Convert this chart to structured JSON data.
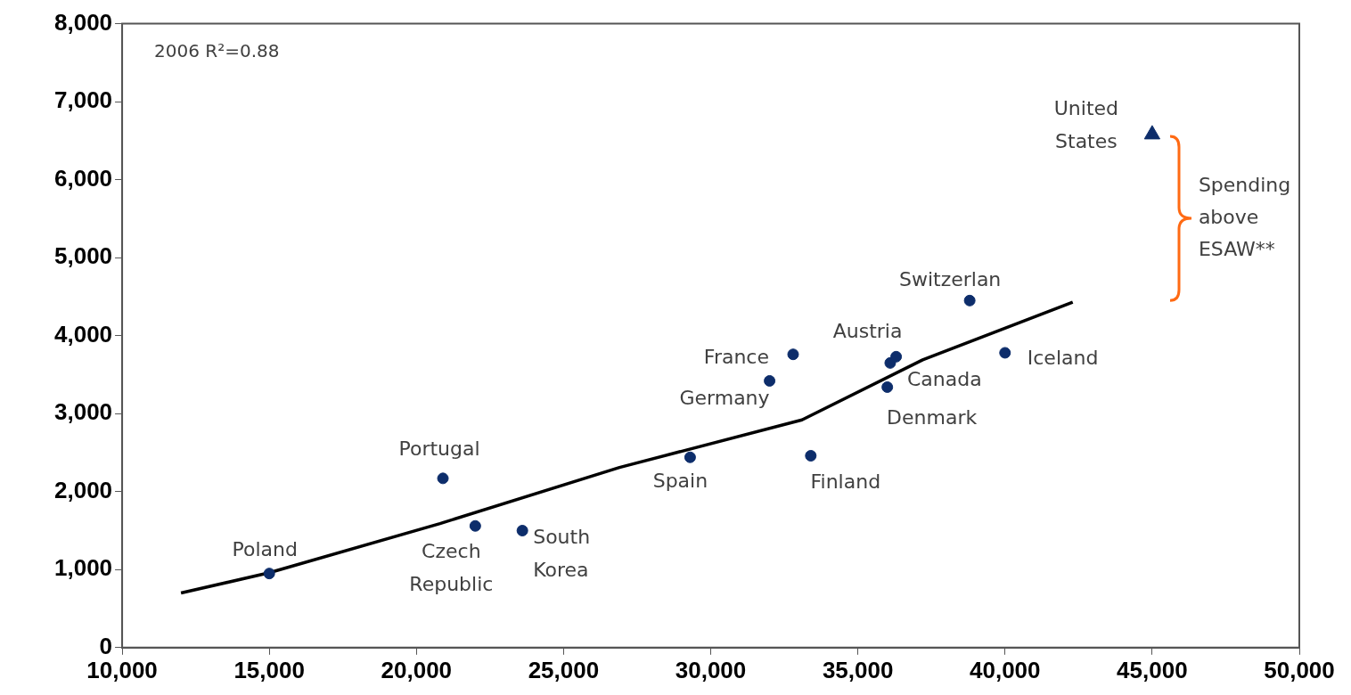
{
  "chart_data": {
    "type": "scatter",
    "xlim": [
      10000,
      50000
    ],
    "xticks": [
      {
        "value": 10000,
        "label": "10,000"
      },
      {
        "value": 15000,
        "label": "15,000"
      },
      {
        "value": 20000,
        "label": "20,000"
      },
      {
        "value": 25000,
        "label": "25,000"
      },
      {
        "value": 30000,
        "label": "30,000"
      },
      {
        "value": 35000,
        "label": "35,000"
      },
      {
        "value": 40000,
        "label": "40,000"
      },
      {
        "value": 45000,
        "label": "45,000"
      },
      {
        "value": 50000,
        "label": "50,000"
      }
    ],
    "ylim": [
      0,
      8000
    ],
    "yticks": [
      0,
      {
        "value": 1000,
        "label": "1,000"
      },
      {
        "value": 2000,
        "label": "2,000"
      },
      {
        "value": 3000,
        "label": "3,000"
      },
      {
        "value": 4000,
        "label": "4,000"
      },
      {
        "value": 5000,
        "label": "5,000"
      },
      {
        "value": 6000,
        "label": "6,000"
      },
      {
        "value": 7000,
        "label": "7,000"
      },
      {
        "value": 8000,
        "label": "8,000"
      }
    ],
    "grid": false,
    "legend": false,
    "series": [
      {
        "marker": "circle",
        "color": "#0d2d6b",
        "x": [
          15000,
          20900,
          22000,
          23600,
          29300,
          32000,
          32800,
          33400,
          36000,
          36100,
          36300,
          38800,
          40000
        ],
        "values": [
          950,
          2170,
          1560,
          1500,
          2440,
          3420,
          3760,
          2460,
          3340,
          3650,
          3730,
          4450,
          3780
        ]
      },
      {
        "marker": "triangle",
        "color": "#0d2d6b",
        "x": [
          45000
        ],
        "values": [
          6580
        ]
      },
      {
        "type": "line",
        "marker": "none",
        "line_style": "solid",
        "color": "#000000",
        "x": [
          12000,
          15000,
          20800,
          26900,
          33100,
          37200,
          42300
        ],
        "values": [
          700,
          960,
          1590,
          2310,
          2920,
          3690,
          4430
        ]
      }
    ],
    "annotations": [
      "2006 R²=0.88",
      {
        "text": "Poland",
        "x": 15000,
        "y": 950
      },
      {
        "text": "Portugal",
        "x": 20900,
        "y": 2170
      },
      {
        "text": "Czech Republic",
        "x": 22000,
        "y": 1560
      },
      {
        "text": "South Korea",
        "x": 23600,
        "y": 1500
      },
      {
        "text": "Spain",
        "x": 29300,
        "y": 2440
      },
      {
        "text": "Germany",
        "x": 32000,
        "y": 3420
      },
      {
        "text": "France",
        "x": 32800,
        "y": 3760
      },
      {
        "text": "Finland",
        "x": 33400,
        "y": 2460
      },
      {
        "text": "Denmark",
        "x": 36000,
        "y": 3340
      },
      {
        "text": "Canada",
        "x": 36100,
        "y": 3650
      },
      {
        "text": "Austria",
        "x": 36300,
        "y": 3730
      },
      {
        "text": "Switzerlan",
        "x": 38800,
        "y": 4450
      },
      {
        "text": "Iceland",
        "x": 40000,
        "y": 3780
      },
      {
        "text": "United States",
        "x": 45000,
        "y": 6580
      },
      "Spending above ESAW**"
    ]
  }
}
